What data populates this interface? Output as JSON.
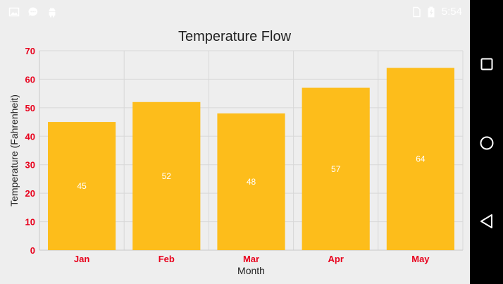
{
  "status_bar": {
    "time": "5:54",
    "left_icons": [
      "image-icon",
      "message-icon",
      "android-icon"
    ],
    "right_icons": [
      "sim-card-icon",
      "battery-charging-icon"
    ]
  },
  "nav_bar": {
    "buttons": [
      "recent-apps-button",
      "home-button",
      "back-button"
    ]
  },
  "colors": {
    "bar": "#FDBD1B",
    "tick_label": "#E8001C",
    "background": "#EEEEEE",
    "grid": "#D8D8D8"
  },
  "chart_data": {
    "type": "bar",
    "title": "Temperature Flow",
    "xlabel": "Month",
    "ylabel": "Temperature (Fahrenheit)",
    "categories": [
      "Jan",
      "Feb",
      "Mar",
      "Apr",
      "May"
    ],
    "values": [
      45,
      52,
      48,
      57,
      64
    ],
    "data_labels": [
      "45",
      "52",
      "48",
      "57",
      "64"
    ],
    "ylim": [
      0,
      70
    ],
    "yticks": [
      "0",
      "10",
      "20",
      "30",
      "40",
      "50",
      "60",
      "70"
    ],
    "grid": true,
    "legend": "none"
  }
}
